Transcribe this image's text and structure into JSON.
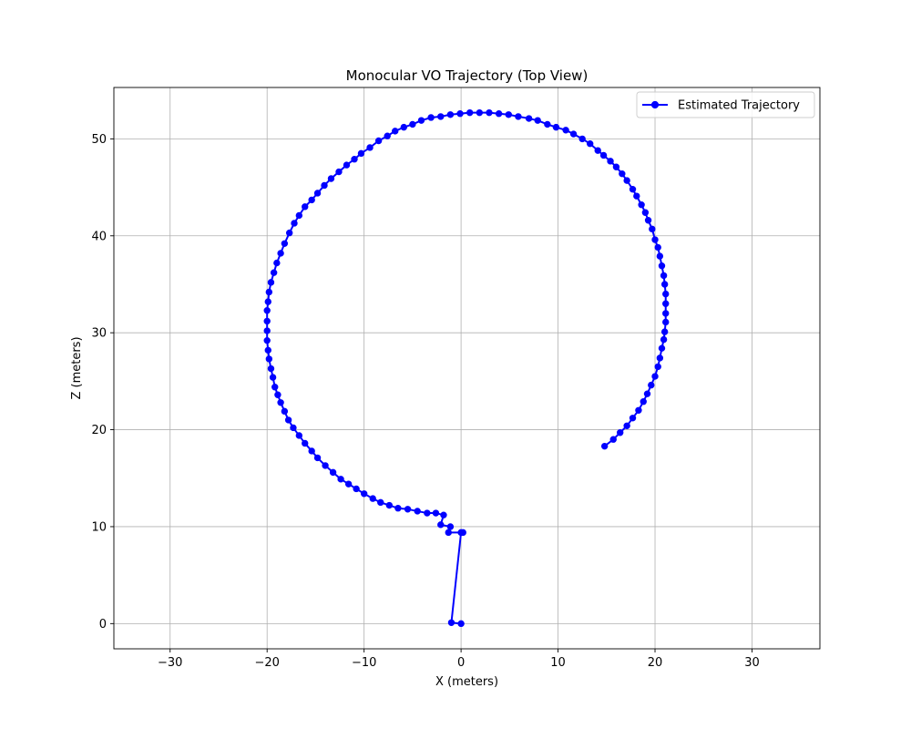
{
  "chart_data": {
    "type": "line",
    "title": "Monocular VO Trajectory (Top View)",
    "xlabel": "X (meters)",
    "ylabel": "Z (meters)",
    "xlim": [
      -35.8,
      37.0
    ],
    "ylim": [
      -2.6,
      55.3
    ],
    "xticks": [
      -30,
      -20,
      -10,
      0,
      10,
      20,
      30
    ],
    "yticks": [
      0,
      10,
      20,
      30,
      40,
      50
    ],
    "xtick_labels": [
      "−30",
      "−20",
      "−10",
      "0",
      "10",
      "20",
      "30"
    ],
    "ytick_labels": [
      "0",
      "10",
      "20",
      "30",
      "40",
      "50"
    ],
    "grid": true,
    "legend_position": "top-right",
    "series": [
      {
        "name": "Estimated Trajectory",
        "color": "#0000ff",
        "marker": "circle",
        "points": [
          [
            0.0,
            0.0
          ],
          [
            -1.0,
            0.1
          ],
          [
            0.0,
            9.4
          ],
          [
            0.2,
            9.4
          ],
          [
            -1.3,
            9.4
          ],
          [
            -1.1,
            10.0
          ],
          [
            -2.1,
            10.2
          ],
          [
            -1.8,
            11.2
          ],
          [
            -2.6,
            11.4
          ],
          [
            -3.5,
            11.4
          ],
          [
            -4.5,
            11.6
          ],
          [
            -5.5,
            11.8
          ],
          [
            -6.5,
            11.9
          ],
          [
            -7.4,
            12.2
          ],
          [
            -8.3,
            12.5
          ],
          [
            -9.1,
            12.9
          ],
          [
            -10.0,
            13.4
          ],
          [
            -10.8,
            13.9
          ],
          [
            -11.6,
            14.4
          ],
          [
            -12.4,
            14.9
          ],
          [
            -13.2,
            15.6
          ],
          [
            -14.0,
            16.3
          ],
          [
            -14.8,
            17.1
          ],
          [
            -15.4,
            17.8
          ],
          [
            -16.1,
            18.6
          ],
          [
            -16.7,
            19.4
          ],
          [
            -17.3,
            20.2
          ],
          [
            -17.8,
            21.0
          ],
          [
            -18.2,
            21.9
          ],
          [
            -18.6,
            22.8
          ],
          [
            -18.9,
            23.6
          ],
          [
            -19.2,
            24.4
          ],
          [
            -19.4,
            25.4
          ],
          [
            -19.6,
            26.3
          ],
          [
            -19.8,
            27.3
          ],
          [
            -19.9,
            28.2
          ],
          [
            -20.0,
            29.2
          ],
          [
            -20.0,
            30.2
          ],
          [
            -20.0,
            31.2
          ],
          [
            -20.0,
            32.3
          ],
          [
            -19.9,
            33.2
          ],
          [
            -19.8,
            34.2
          ],
          [
            -19.6,
            35.2
          ],
          [
            -19.3,
            36.2
          ],
          [
            -19.0,
            37.2
          ],
          [
            -18.6,
            38.2
          ],
          [
            -18.2,
            39.2
          ],
          [
            -17.7,
            40.3
          ],
          [
            -17.2,
            41.3
          ],
          [
            -16.7,
            42.1
          ],
          [
            -16.1,
            43.0
          ],
          [
            -15.4,
            43.7
          ],
          [
            -14.8,
            44.4
          ],
          [
            -14.1,
            45.2
          ],
          [
            -13.4,
            45.9
          ],
          [
            -12.6,
            46.6
          ],
          [
            -11.8,
            47.3
          ],
          [
            -11.0,
            47.9
          ],
          [
            -10.3,
            48.5
          ],
          [
            -9.4,
            49.1
          ],
          [
            -8.5,
            49.8
          ],
          [
            -7.6,
            50.3
          ],
          [
            -6.8,
            50.8
          ],
          [
            -5.9,
            51.2
          ],
          [
            -5.0,
            51.5
          ],
          [
            -4.1,
            51.9
          ],
          [
            -3.1,
            52.2
          ],
          [
            -2.1,
            52.3
          ],
          [
            -1.1,
            52.5
          ],
          [
            -0.1,
            52.6
          ],
          [
            0.9,
            52.7
          ],
          [
            1.9,
            52.7
          ],
          [
            2.9,
            52.7
          ],
          [
            3.9,
            52.6
          ],
          [
            4.9,
            52.5
          ],
          [
            5.9,
            52.3
          ],
          [
            7.0,
            52.1
          ],
          [
            7.9,
            51.9
          ],
          [
            8.9,
            51.5
          ],
          [
            9.8,
            51.2
          ],
          [
            10.8,
            50.9
          ],
          [
            11.6,
            50.5
          ],
          [
            12.5,
            50.0
          ],
          [
            13.3,
            49.5
          ],
          [
            14.1,
            48.8
          ],
          [
            14.7,
            48.3
          ],
          [
            15.4,
            47.7
          ],
          [
            16.0,
            47.1
          ],
          [
            16.6,
            46.4
          ],
          [
            17.1,
            45.7
          ],
          [
            17.7,
            44.8
          ],
          [
            18.1,
            44.1
          ],
          [
            18.6,
            43.2
          ],
          [
            19.0,
            42.4
          ],
          [
            19.3,
            41.6
          ],
          [
            19.7,
            40.7
          ],
          [
            20.0,
            39.6
          ],
          [
            20.3,
            38.8
          ],
          [
            20.5,
            37.9
          ],
          [
            20.7,
            36.9
          ],
          [
            20.9,
            35.9
          ],
          [
            21.0,
            35.0
          ],
          [
            21.1,
            34.0
          ],
          [
            21.1,
            33.0
          ],
          [
            21.1,
            32.0
          ],
          [
            21.1,
            31.1
          ],
          [
            21.0,
            30.1
          ],
          [
            20.9,
            29.3
          ],
          [
            20.7,
            28.4
          ],
          [
            20.5,
            27.4
          ],
          [
            20.3,
            26.5
          ],
          [
            20.0,
            25.5
          ],
          [
            19.6,
            24.6
          ],
          [
            19.2,
            23.7
          ],
          [
            18.8,
            22.9
          ],
          [
            18.3,
            22.0
          ],
          [
            17.7,
            21.2
          ],
          [
            17.1,
            20.4
          ],
          [
            16.4,
            19.7
          ],
          [
            15.7,
            19.0
          ],
          [
            14.8,
            18.3
          ]
        ]
      }
    ]
  }
}
